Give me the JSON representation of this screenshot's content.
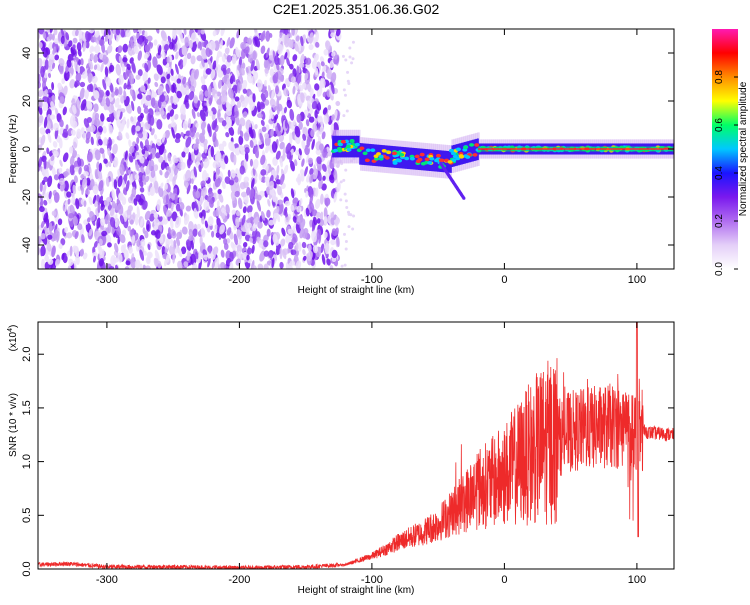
{
  "title": "C2E1.2025.351.06.36.G02",
  "chart_data": [
    {
      "type": "heatmap",
      "name": "spectrogram",
      "xlabel": "Height of straight line (km)",
      "ylabel": "Frequency (Hz)",
      "xlim": [
        -352,
        128
      ],
      "ylim": [
        -50,
        50
      ],
      "xticks": [
        -300,
        -200,
        -100,
        0,
        100
      ],
      "yticks": [
        -40,
        -20,
        0,
        20,
        40
      ],
      "colorbar": {
        "label": "Normalized spectral amplitude",
        "range": [
          0,
          1
        ],
        "ticks": [
          0.0,
          0.2,
          0.4,
          0.6,
          0.8
        ],
        "colors": [
          "#ffffff",
          "#e4cff8",
          "#b06df0",
          "#7a19ee",
          "#1a14ff",
          "#00c8ff",
          "#00ff66",
          "#ffff00",
          "#ff8c00",
          "#ff0000",
          "#ff1ab2"
        ]
      },
      "regions": {
        "noise_x": [
          -352,
          -125
        ],
        "signal_x": [
          -130,
          128
        ],
        "signal_center_hz": 0
      }
    },
    {
      "type": "line",
      "name": "snr",
      "xlabel": "Height of straight line (km)",
      "ylabel": "SNR (10 * v/v)",
      "yscale_label": "(x10",
      "yscale_exp": "4",
      "yscale_close": ")",
      "xlim": [
        -352,
        128
      ],
      "ylim": [
        0,
        2.3
      ],
      "xticks": [
        -300,
        -200,
        -100,
        0,
        100
      ],
      "yticks": [
        0.0,
        0.5,
        1.0,
        1.5,
        2.0
      ],
      "color": "#ee2a2a",
      "envelope": [
        [
          -352,
          0.04
        ],
        [
          -330,
          0.05
        ],
        [
          -300,
          0.02
        ],
        [
          -250,
          0.02
        ],
        [
          -200,
          0.01
        ],
        [
          -150,
          0.02
        ],
        [
          -120,
          0.04
        ],
        [
          -110,
          0.08
        ],
        [
          -100,
          0.12
        ],
        [
          -90,
          0.18
        ],
        [
          -80,
          0.25
        ],
        [
          -70,
          0.3
        ],
        [
          -60,
          0.35
        ],
        [
          -50,
          0.42
        ],
        [
          -40,
          0.52
        ],
        [
          -30,
          0.62
        ],
        [
          -25,
          0.7
        ],
        [
          -20,
          0.75
        ],
        [
          -10,
          0.8
        ],
        [
          0,
          0.88
        ],
        [
          10,
          0.98
        ],
        [
          20,
          1.08
        ],
        [
          30,
          1.16
        ],
        [
          40,
          1.22
        ],
        [
          50,
          1.28
        ],
        [
          60,
          1.3
        ],
        [
          70,
          1.32
        ],
        [
          80,
          1.33
        ],
        [
          90,
          1.33
        ],
        [
          100,
          1.3
        ],
        [
          110,
          1.27
        ],
        [
          128,
          1.25
        ]
      ]
    }
  ]
}
